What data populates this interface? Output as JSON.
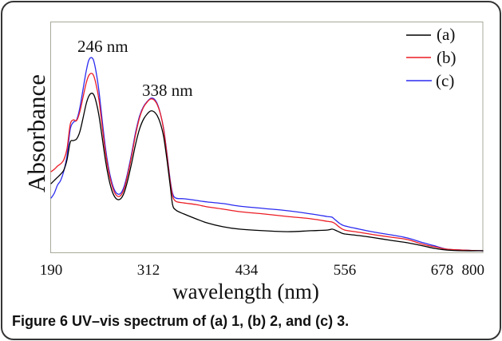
{
  "caption": {
    "label": "Figure 6",
    "text": "UV–vis spectrum of (a) 1, (b) 2, and (c) 3."
  },
  "chart_data": {
    "type": "line",
    "xlabel": "wavelength (nm)",
    "ylabel": "Absorbance",
    "xlim": [
      190,
      800
    ],
    "ylim": [
      0,
      1
    ],
    "x_ticks": [
      190,
      312,
      434,
      556,
      678,
      800
    ],
    "grid": false,
    "legend": "top-right",
    "x": [
      190,
      194,
      198,
      202,
      206,
      210,
      214,
      218,
      222,
      226,
      230,
      234,
      237,
      240,
      243,
      246,
      250,
      254,
      258,
      262,
      266,
      270,
      274,
      278,
      282,
      286,
      291,
      296,
      301,
      306,
      311,
      315,
      319,
      323,
      327,
      331,
      335,
      339,
      342,
      346,
      356,
      371,
      385,
      405,
      425,
      455,
      485,
      514,
      534,
      540,
      544,
      550,
      556,
      574,
      594,
      614,
      634,
      654,
      669,
      692,
      740,
      800
    ],
    "series": [
      {
        "name": "(a)",
        "color": "#000000",
        "y": [
          0.299,
          0.313,
          0.326,
          0.34,
          0.358,
          0.403,
          0.479,
          0.486,
          0.493,
          0.524,
          0.583,
          0.646,
          0.677,
          0.691,
          0.688,
          0.66,
          0.594,
          0.5,
          0.403,
          0.326,
          0.271,
          0.24,
          0.229,
          0.236,
          0.264,
          0.313,
          0.389,
          0.472,
          0.538,
          0.58,
          0.604,
          0.615,
          0.611,
          0.594,
          0.559,
          0.5,
          0.403,
          0.292,
          0.208,
          0.184,
          0.167,
          0.146,
          0.128,
          0.111,
          0.101,
          0.094,
          0.09,
          0.094,
          0.097,
          0.101,
          0.097,
          0.087,
          0.08,
          0.073,
          0.063,
          0.052,
          0.042,
          0.028,
          0.017,
          0.01,
          0.007,
          0.007
        ]
      },
      {
        "name": "(b)",
        "color": "#ec1c24",
        "y": [
          0.351,
          0.361,
          0.375,
          0.385,
          0.403,
          0.451,
          0.556,
          0.576,
          0.573,
          0.611,
          0.674,
          0.736,
          0.767,
          0.778,
          0.771,
          0.736,
          0.663,
          0.549,
          0.438,
          0.354,
          0.295,
          0.257,
          0.243,
          0.25,
          0.281,
          0.337,
          0.42,
          0.514,
          0.587,
          0.632,
          0.656,
          0.667,
          0.663,
          0.642,
          0.601,
          0.531,
          0.424,
          0.309,
          0.247,
          0.222,
          0.215,
          0.208,
          0.198,
          0.188,
          0.177,
          0.167,
          0.156,
          0.146,
          0.135,
          0.132,
          0.125,
          0.108,
          0.097,
          0.087,
          0.076,
          0.066,
          0.056,
          0.035,
          0.024,
          0.014,
          0.01,
          0.007
        ]
      },
      {
        "name": "(c)",
        "color": "#2b2bf0",
        "y": [
          0.236,
          0.257,
          0.292,
          0.313,
          0.354,
          0.42,
          0.535,
          0.566,
          0.576,
          0.628,
          0.708,
          0.788,
          0.833,
          0.847,
          0.837,
          0.792,
          0.701,
          0.576,
          0.458,
          0.368,
          0.306,
          0.267,
          0.253,
          0.26,
          0.292,
          0.347,
          0.431,
          0.524,
          0.594,
          0.635,
          0.658,
          0.67,
          0.667,
          0.646,
          0.601,
          0.535,
          0.431,
          0.316,
          0.257,
          0.236,
          0.233,
          0.226,
          0.219,
          0.212,
          0.201,
          0.191,
          0.181,
          0.167,
          0.156,
          0.153,
          0.142,
          0.125,
          0.115,
          0.101,
          0.087,
          0.076,
          0.063,
          0.042,
          0.028,
          0.014,
          0.01,
          0.007
        ]
      }
    ],
    "annotations": [
      {
        "text": "246 nm"
      },
      {
        "text": "338 nm"
      }
    ]
  }
}
